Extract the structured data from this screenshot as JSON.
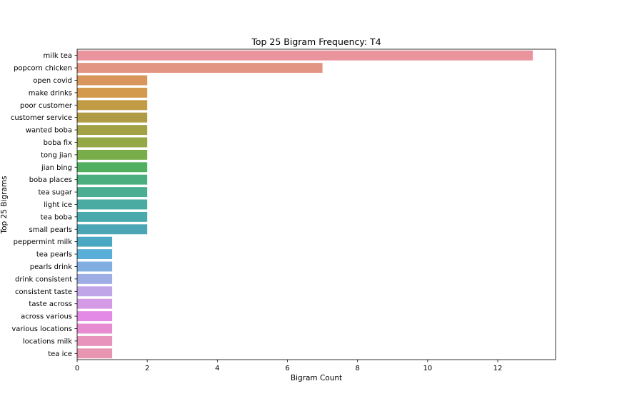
{
  "chart_data": {
    "type": "bar",
    "orientation": "horizontal",
    "title": "Top 25 Bigram Frequency: T4",
    "xlabel": "Bigram Count",
    "ylabel": "Top 25 Bigrams",
    "xlim": [
      0,
      13.65
    ],
    "xticks": [
      0,
      2,
      4,
      6,
      8,
      10,
      12
    ],
    "grid": false,
    "categories": [
      "milk tea",
      "popcorn chicken",
      "open covid",
      "make drinks",
      "poor customer",
      "customer service",
      "wanted boba",
      "boba fix",
      "tong jian",
      "jian bing",
      "boba places",
      "tea sugar",
      "light ice",
      "tea boba",
      "small pearls",
      "peppermint milk",
      "tea pearls",
      "pearls drink",
      "drink consistent",
      "consistent taste",
      "taste across",
      "across various",
      "various locations",
      "locations milk",
      "tea ice"
    ],
    "values": [
      13,
      7,
      2,
      2,
      2,
      2,
      2,
      2,
      2,
      2,
      2,
      2,
      2,
      2,
      2,
      1,
      1,
      1,
      1,
      1,
      1,
      1,
      1,
      1,
      1
    ],
    "colors": [
      "#ea949e",
      "#e39583",
      "#d8965a",
      "#d39a4e",
      "#c19b45",
      "#b09c45",
      "#a3a145",
      "#94a845",
      "#79ad4a",
      "#50b05f",
      "#4aae7e",
      "#4bae93",
      "#4aaba2",
      "#4aa9ab",
      "#4aa6b4",
      "#4aa8c2",
      "#58aed7",
      "#80aee1",
      "#9eaee5",
      "#c0a5e8",
      "#d59ae6",
      "#e28ae5",
      "#e78cd0",
      "#e793bb",
      "#e895b1"
    ]
  }
}
